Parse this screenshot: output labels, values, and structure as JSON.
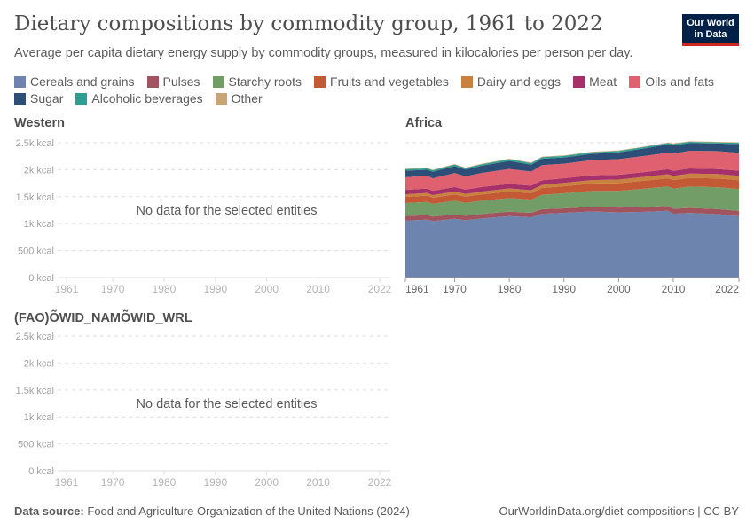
{
  "header": {
    "title": "Dietary compositions by commodity group, 1961 to 2022",
    "subtitle": "Average per capita dietary energy supply by commodity groups, measured in kilocalories per person per day.",
    "logo": "Our World in Data"
  },
  "legend": [
    {
      "label": "Cereals and grains",
      "color": "#6D84AF"
    },
    {
      "label": "Pulses",
      "color": "#A2545E"
    },
    {
      "label": "Starchy roots",
      "color": "#739D66"
    },
    {
      "label": "Fruits and vegetables",
      "color": "#C45A35"
    },
    {
      "label": "Dairy and eggs",
      "color": "#C8813F"
    },
    {
      "label": "Meat",
      "color": "#A5306A"
    },
    {
      "label": "Oils and fats",
      "color": "#DF616F"
    },
    {
      "label": "Sugar",
      "color": "#2D4E76"
    },
    {
      "label": "Alcoholic beverages",
      "color": "#2E9E92"
    },
    {
      "label": "Other",
      "color": "#C9A576"
    }
  ],
  "chart_data": [
    {
      "type": "area",
      "entity": "Western",
      "no_data_text": "No data for the selected entities",
      "xlim": [
        1961,
        2022
      ],
      "ylim": [
        0,
        2500
      ],
      "x_ticks": [
        "1961",
        "1970",
        "1980",
        "1990",
        "2000",
        "2010",
        "2022"
      ],
      "y_ticks": [
        "0 kcal",
        "500 kcal",
        "1k kcal",
        "1.5k kcal",
        "2k kcal",
        "2.5k kcal"
      ],
      "series": []
    },
    {
      "type": "area",
      "entity": "(FAO)ÕWID_NAMÕWID_WRL",
      "no_data_text": "No data for the selected entities",
      "xlim": [
        1961,
        2022
      ],
      "ylim": [
        0,
        2500
      ],
      "x_ticks": [
        "1961",
        "1970",
        "1980",
        "1990",
        "2000",
        "2010",
        "2022"
      ],
      "y_ticks": [
        "0 kcal",
        "500 kcal",
        "1k kcal",
        "1.5k kcal",
        "2k kcal",
        "2.5k kcal"
      ],
      "series": []
    },
    {
      "type": "area",
      "stacked": true,
      "entity": "Africa",
      "xlim": [
        1961,
        2022
      ],
      "ylim": [
        0,
        2500
      ],
      "x_ticks": [
        "1961",
        "1970",
        "1980",
        "1990",
        "2000",
        "2010",
        "2022"
      ],
      "x": [
        1961,
        1965,
        1966,
        1970,
        1972,
        1975,
        1980,
        1984,
        1986,
        1990,
        1995,
        2000,
        2005,
        2009,
        2010,
        2013,
        2018,
        2022
      ],
      "series": [
        {
          "name": "Cereals and grains",
          "values": [
            1057,
            1073,
            1046,
            1089,
            1062,
            1095,
            1138,
            1117,
            1182,
            1198,
            1225,
            1209,
            1220,
            1237,
            1182,
            1198,
            1176,
            1138
          ]
        },
        {
          "name": "Pulses",
          "values": [
            85,
            85,
            84,
            86,
            84,
            85,
            86,
            84,
            86,
            85,
            86,
            88,
            90,
            92,
            92,
            94,
            95,
            97
          ]
        },
        {
          "name": "Starchy roots",
          "values": [
            240,
            245,
            238,
            250,
            240,
            245,
            250,
            245,
            265,
            280,
            295,
            310,
            340,
            360,
            375,
            395,
            405,
            408
          ]
        },
        {
          "name": "Fruits and vegetables",
          "values": [
            114,
            116,
            112,
            118,
            114,
            118,
            122,
            120,
            128,
            132,
            138,
            142,
            148,
            152,
            158,
            162,
            163,
            163
          ]
        },
        {
          "name": "Dairy and eggs",
          "values": [
            49,
            50,
            49,
            52,
            50,
            52,
            56,
            54,
            58,
            60,
            64,
            68,
            72,
            76,
            78,
            80,
            81,
            82
          ]
        },
        {
          "name": "Meat",
          "values": [
            82,
            82,
            80,
            84,
            82,
            84,
            86,
            84,
            86,
            87,
            88,
            89,
            90,
            92,
            93,
            94,
            93,
            93
          ]
        },
        {
          "name": "Oils and fats",
          "values": [
            234,
            238,
            232,
            260,
            246,
            262,
            275,
            262,
            280,
            270,
            282,
            290,
            300,
            306,
            320,
            330,
            332,
            332
          ]
        },
        {
          "name": "Sugar",
          "values": [
            120,
            110,
            120,
            128,
            125,
            133,
            150,
            127,
            117,
            115,
            117,
            125,
            140,
            155,
            155,
            140,
            140,
            163
          ]
        },
        {
          "name": "Alcoholic beverages",
          "values": [
            27,
            27,
            27,
            28,
            27,
            28,
            30,
            29,
            30,
            29,
            28,
            27,
            25,
            23,
            24,
            24,
            22,
            22
          ]
        },
        {
          "name": "Other",
          "values": [
            10,
            10,
            10,
            10,
            10,
            10,
            10,
            10,
            10,
            10,
            10,
            10,
            10,
            10,
            10,
            10,
            10,
            10
          ]
        }
      ]
    }
  ],
  "footer": {
    "source_label": "Data source:",
    "source": "Food and Agriculture Organization of the United Nations (2024)",
    "link": "OurWorldinData.org/diet-compositions",
    "license": "| CC BY"
  }
}
